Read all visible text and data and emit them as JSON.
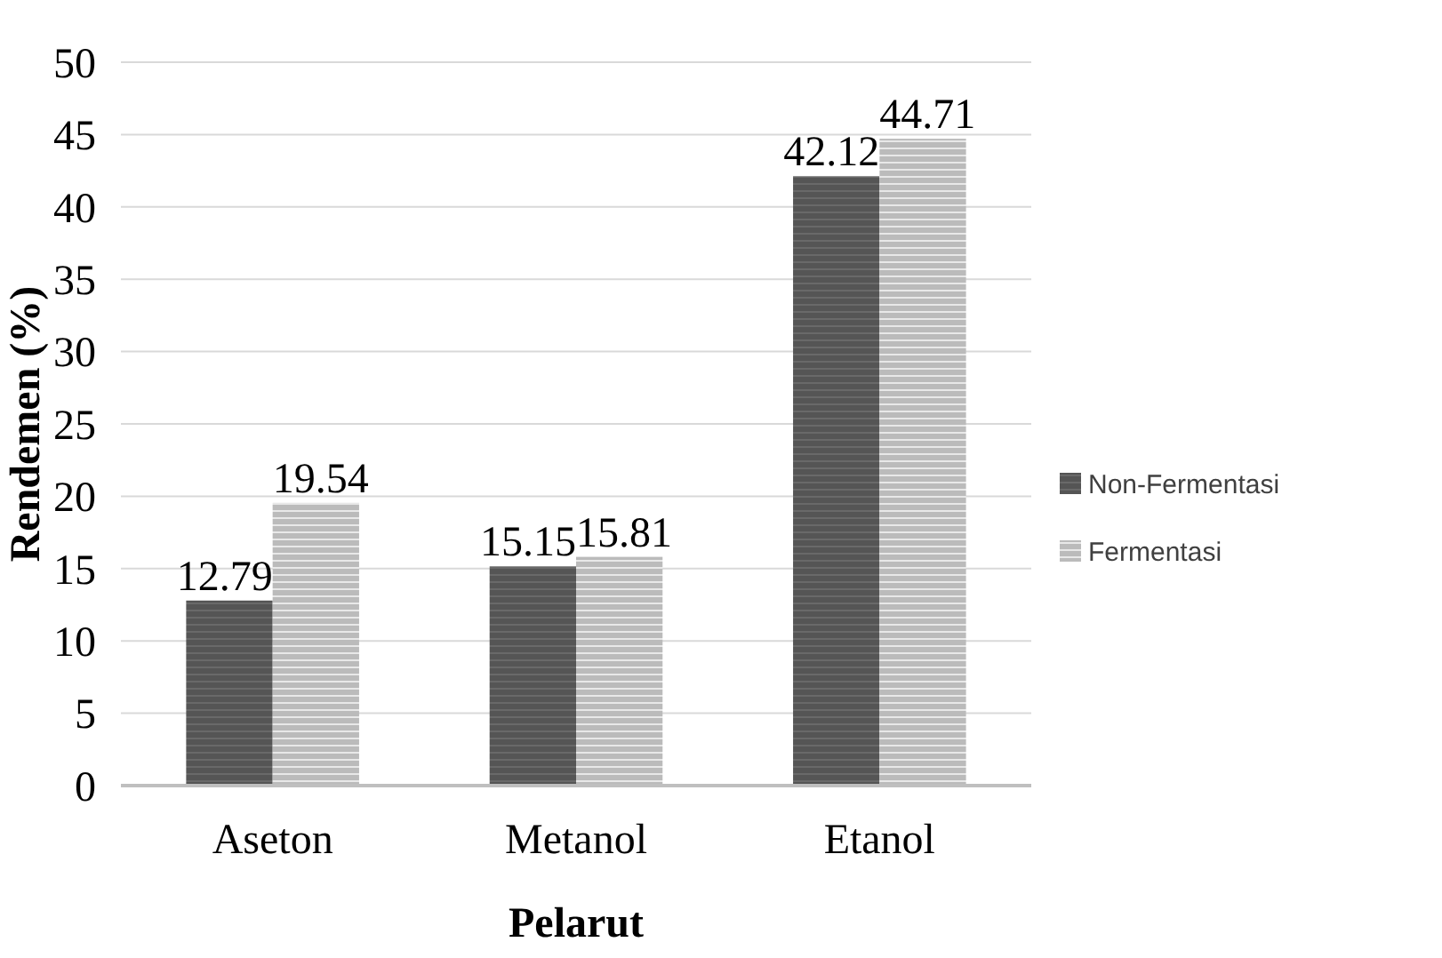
{
  "chart_data": {
    "type": "bar",
    "xlabel": "Pelarut",
    "ylabel": "Rendemen (%)",
    "categories": [
      "Aseton",
      "Metanol",
      "Etanol"
    ],
    "series": [
      {
        "name": "Non-Fermentasi",
        "color": "#555555",
        "values": [
          12.79,
          15.15,
          42.12
        ]
      },
      {
        "name": "Fermentasi",
        "color": "#bbbbbb",
        "values": [
          19.54,
          15.81,
          44.71
        ]
      }
    ],
    "ylim": [
      0,
      50
    ],
    "yticks": [
      0,
      5,
      10,
      15,
      20,
      25,
      30,
      35,
      40,
      45,
      50
    ],
    "grid": "y",
    "legend": "right",
    "data_labels": true
  }
}
